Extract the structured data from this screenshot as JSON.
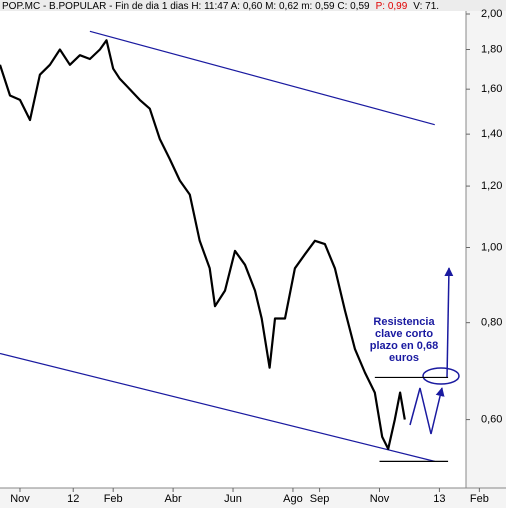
{
  "chart_data": {
    "type": "line",
    "header": [
      "POP.MC - B.POPULAR - Fin de dia 1 dias  H: 11:47  A: 0,60  M: 0,62  m: 0,59  C: 0,59",
      "P: 0,99",
      "V: 71."
    ],
    "header_colors": [
      "#000000",
      "#e00000",
      "#000000"
    ],
    "x": [
      0,
      1.5,
      3,
      4.5,
      6,
      7.5,
      9,
      10.5,
      12,
      13.5,
      15,
      16,
      17,
      18,
      19.5,
      21,
      22.5,
      24,
      25.5,
      27,
      28.5,
      30,
      31.5,
      32.3,
      33.8,
      35.3,
      36.8,
      38.3,
      39.3,
      40.5,
      41.3,
      42.8,
      44.3,
      45.8,
      47.3,
      48.8,
      50.3,
      51.8,
      53.3,
      54.8,
      56.3,
      57.4,
      58.3,
      59.3,
      60.1,
      60.8
    ],
    "values": [
      1.72,
      1.57,
      1.55,
      1.46,
      1.67,
      1.72,
      1.8,
      1.72,
      1.77,
      1.75,
      1.8,
      1.85,
      1.7,
      1.65,
      1.6,
      1.55,
      1.51,
      1.38,
      1.3,
      1.22,
      1.17,
      1.02,
      0.94,
      0.84,
      0.88,
      0.99,
      0.95,
      0.88,
      0.81,
      0.7,
      0.81,
      0.81,
      0.94,
      0.98,
      1.02,
      1.01,
      0.94,
      0.83,
      0.74,
      0.69,
      0.65,
      0.57,
      0.55,
      0.6,
      0.65,
      0.6
    ],
    "color": "#000000",
    "xlim": [
      0,
      76
    ],
    "xticks": [
      {
        "value": 3,
        "label": "Nov"
      },
      {
        "value": 11,
        "label": "12"
      },
      {
        "value": 17,
        "label": "Feb"
      },
      {
        "value": 26,
        "label": "Abr"
      },
      {
        "value": 35,
        "label": "Jun"
      },
      {
        "value": 44,
        "label": "Ago"
      },
      {
        "value": 48,
        "label": "Sep"
      },
      {
        "value": 57,
        "label": "Nov"
      },
      {
        "value": 66,
        "label": "13"
      },
      {
        "value": 72,
        "label": "Feb"
      }
    ],
    "ylim": [
      0.5,
      2.0
    ],
    "log_scale": true,
    "yticks": [
      {
        "value": 0.6,
        "label": "0,60"
      },
      {
        "value": 0.8,
        "label": "0,80"
      },
      {
        "value": 1.0,
        "label": "1,00"
      },
      {
        "value": 1.2,
        "label": "1,20"
      },
      {
        "value": 1.4,
        "label": "1,40"
      },
      {
        "value": 1.6,
        "label": "1,60"
      },
      {
        "value": 1.8,
        "label": "1,80"
      },
      {
        "value": 2.0,
        "label": "2,00"
      }
    ],
    "grid": false,
    "lines": [
      {
        "x": [
          13.5,
          65.3
        ],
        "y": [
          1.9,
          1.44
        ],
        "color": "#1a1aa0"
      },
      {
        "x": [
          0,
          65.3
        ],
        "y": [
          0.73,
          0.53
        ],
        "color": "#1a1aa0"
      },
      {
        "x": [
          57,
          67.3
        ],
        "y": [
          0.53,
          0.53
        ],
        "color": "#000000"
      },
      {
        "x": [
          56.3,
          67.3
        ],
        "y": [
          0.68,
          0.68
        ],
        "color": "#000000"
      }
    ],
    "annotation": [
      "Resistencia",
      "clave corto",
      "plazo en 0,68",
      "euros"
    ]
  }
}
